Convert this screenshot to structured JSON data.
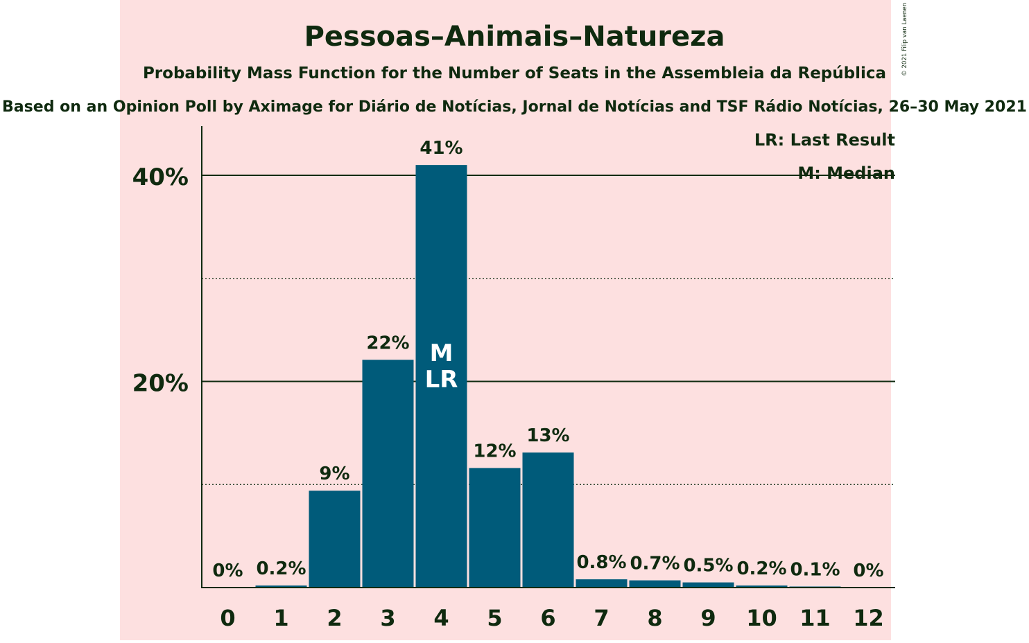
{
  "colors": {
    "background_band": "#fde0e0",
    "bar": "#005b7a",
    "text": "#0f2a0f",
    "grid": "#0f2a0f"
  },
  "header": {
    "title": "Pessoas–Animais–Natureza",
    "subtitle": "Probability Mass Function for the Number of Seats in the Assembleia da República",
    "source": "Based on an Opinion Poll by Aximage for Diário de Notícias, Jornal de Notícias and TSF Rádio Notícias, 26–30 May 2021",
    "copyright": "© 2021 Filip van Laenen"
  },
  "legend": {
    "last_result": "LR: Last Result",
    "median": "M: Median"
  },
  "chart_data": {
    "type": "bar",
    "categories": [
      "0",
      "1",
      "2",
      "3",
      "4",
      "5",
      "6",
      "7",
      "8",
      "9",
      "10",
      "11",
      "12"
    ],
    "values": [
      0,
      0.2,
      9.4,
      22.1,
      41.0,
      11.6,
      13.1,
      0.8,
      0.7,
      0.5,
      0.2,
      0.1,
      0
    ],
    "data_labels": [
      "0%",
      "0.2%",
      "9%",
      "22%",
      "41%",
      "12%",
      "13%",
      "0.8%",
      "0.7%",
      "0.5%",
      "0.2%",
      "0.1%",
      "0%"
    ],
    "ylim": [
      0,
      44
    ],
    "yticks": [
      20,
      40
    ],
    "ytick_labels": [
      "20%",
      "40%"
    ],
    "minor_gridlines": [
      10,
      30
    ],
    "median_seat": "4",
    "last_result_seat": "4",
    "median_marker": "M",
    "last_result_marker": "LR",
    "legend_position": "top-right",
    "grid": true
  }
}
